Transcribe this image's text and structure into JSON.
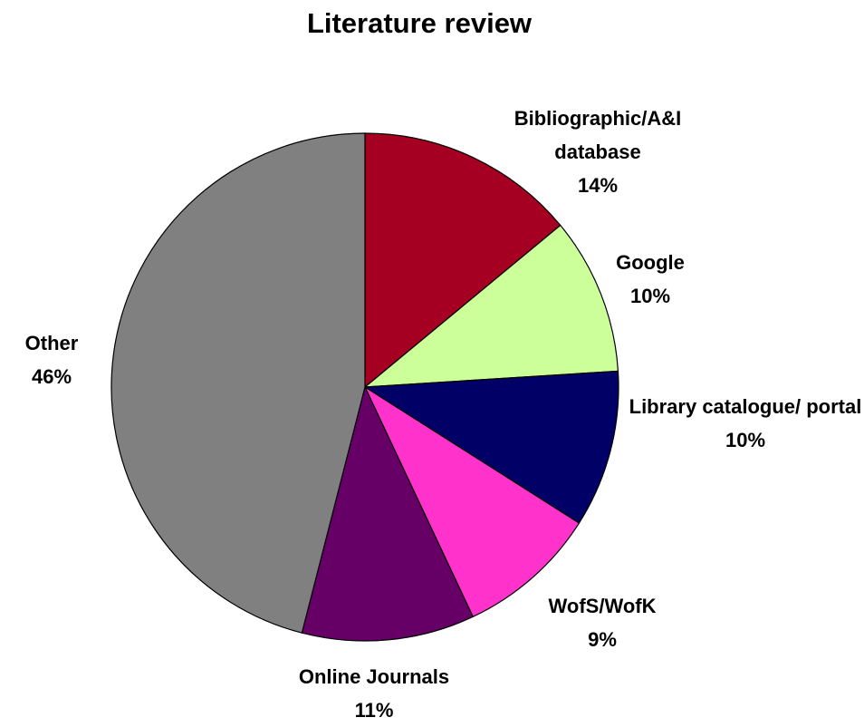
{
  "chart_data": {
    "type": "pie",
    "title": "Literature review",
    "categories": [
      "Bibliographic/A&I database",
      "Google",
      "Library catalogue/ portal",
      "WofS/WofK",
      "Online Journals",
      "Other"
    ],
    "values": [
      14,
      10,
      10,
      9,
      11,
      46
    ],
    "value_labels": [
      "14%",
      "10%",
      "10%",
      "9%",
      "11%",
      "46%"
    ],
    "colors": [
      "#a50021",
      "#ccff99",
      "#000066",
      "#ff33cc",
      "#660066",
      "#808080"
    ]
  }
}
